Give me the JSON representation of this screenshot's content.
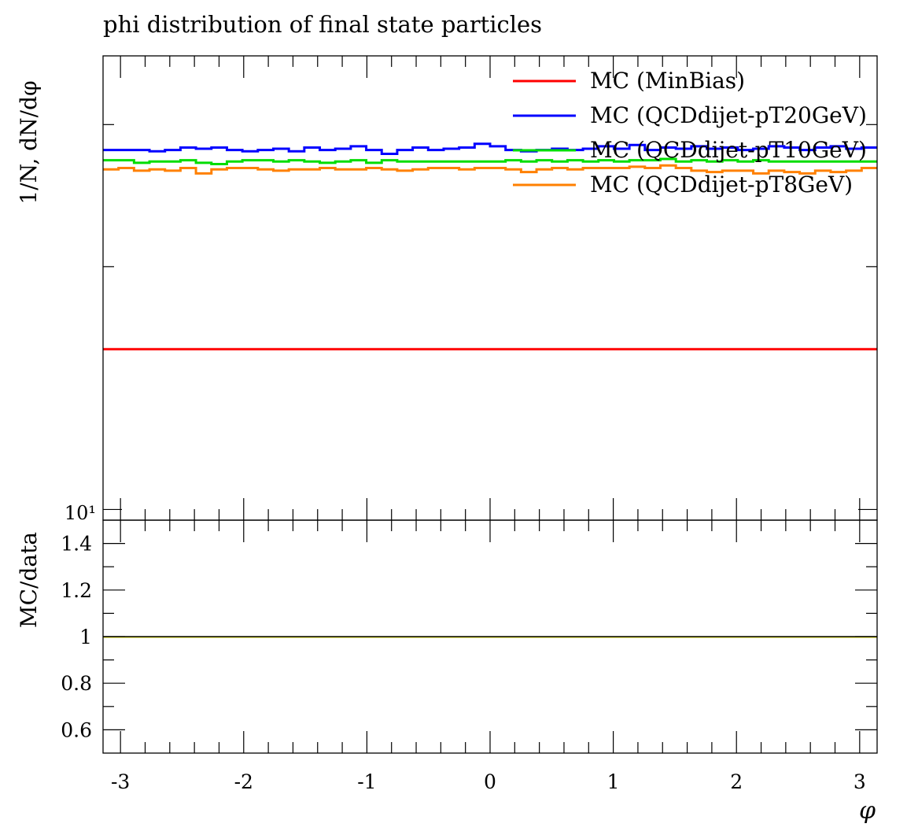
{
  "chart_data": {
    "type": "line",
    "title": "phi distribution of final state particles",
    "main": {
      "ylabel": "1/N, dN/dφ",
      "yscale": "log",
      "y_tick_label": "10¹",
      "ylim": [
        9.7,
        36.5
      ],
      "legend_position": "top-right",
      "bin_edges": [
        -3.1416,
        3.1416
      ],
      "n_bins": 50,
      "series": [
        {
          "name": "MC (MinBias)",
          "color": "#ff0000",
          "values": [
            15.8,
            15.8,
            15.8,
            15.8,
            15.8,
            15.8,
            15.8,
            15.8,
            15.8,
            15.8,
            15.8,
            15.8,
            15.8,
            15.8,
            15.8,
            15.8,
            15.8,
            15.8,
            15.8,
            15.8,
            15.8,
            15.8,
            15.8,
            15.8,
            15.8,
            15.8,
            15.8,
            15.8,
            15.8,
            15.8,
            15.8,
            15.8,
            15.8,
            15.8,
            15.8,
            15.8,
            15.8,
            15.8,
            15.8,
            15.8,
            15.8,
            15.8,
            15.8,
            15.8,
            15.8,
            15.8,
            15.8,
            15.8,
            15.8,
            15.8
          ]
        },
        {
          "name": "MC (QCDdijet-pT20GeV)",
          "color": "#0000ff",
          "values": [
            27.9,
            27.9,
            27.9,
            27.8,
            27.9,
            28.1,
            28.0,
            28.1,
            27.9,
            27.8,
            27.9,
            28.0,
            27.8,
            28.1,
            27.9,
            28.0,
            28.2,
            27.9,
            27.6,
            27.9,
            28.1,
            27.9,
            28.0,
            28.1,
            28.4,
            28.2,
            27.9,
            27.8,
            27.9,
            28.0,
            27.9,
            28.0,
            28.2,
            28.0,
            28.3,
            27.9,
            28.1,
            28.0,
            28.2,
            28.0,
            28.1,
            27.9,
            28.0,
            28.2,
            28.1,
            27.9,
            28.1,
            28.2,
            28.0,
            28.1
          ]
        },
        {
          "name": "MC (QCDdijet-pT10GeV)",
          "color": "#00dd00",
          "values": [
            27.1,
            27.1,
            26.9,
            27.0,
            27.0,
            27.1,
            26.9,
            26.8,
            27.0,
            27.1,
            27.1,
            27.0,
            27.1,
            27.0,
            26.9,
            27.0,
            27.1,
            26.9,
            27.1,
            27.0,
            27.0,
            27.0,
            27.0,
            27.0,
            27.0,
            27.0,
            27.1,
            27.0,
            27.1,
            27.0,
            27.1,
            27.0,
            27.1,
            27.0,
            27.1,
            27.1,
            27.2,
            27.0,
            27.1,
            27.0,
            27.1,
            27.0,
            27.1,
            27.0,
            27.0,
            27.0,
            27.0,
            27.0,
            27.0,
            27.0
          ]
        },
        {
          "name": "MC (QCDdijet-pT8GeV)",
          "color": "#ff8000",
          "values": [
            26.4,
            26.5,
            26.3,
            26.4,
            26.3,
            26.5,
            26.1,
            26.4,
            26.5,
            26.5,
            26.4,
            26.3,
            26.4,
            26.4,
            26.5,
            26.4,
            26.4,
            26.5,
            26.4,
            26.3,
            26.4,
            26.5,
            26.5,
            26.4,
            26.5,
            26.5,
            26.4,
            26.2,
            26.4,
            26.5,
            26.4,
            26.5,
            26.5,
            26.5,
            26.6,
            26.5,
            26.7,
            26.5,
            26.3,
            26.2,
            26.3,
            26.3,
            26.1,
            26.3,
            26.2,
            26.1,
            26.3,
            26.2,
            26.3,
            26.5
          ]
        }
      ]
    },
    "ratio": {
      "ylabel": "MC/data",
      "ylim": [
        0.5,
        1.5
      ],
      "ytick_labels": [
        {
          "value": 0.6,
          "label": "0.6"
        },
        {
          "value": 0.8,
          "label": "0.8"
        },
        {
          "value": 1.0,
          "label": "1"
        },
        {
          "value": 1.2,
          "label": "1.2"
        },
        {
          "value": 1.4,
          "label": "1.4"
        }
      ],
      "reference_line": 1.0,
      "reference_color": "#dddd00"
    },
    "x": {
      "xlabel": "φ",
      "xlim": [
        -3.1416,
        3.1416
      ],
      "tick_labels": [
        {
          "value": -3,
          "label": "-3"
        },
        {
          "value": -2,
          "label": "-2"
        },
        {
          "value": -1,
          "label": "-1"
        },
        {
          "value": 0,
          "label": "0"
        },
        {
          "value": 1,
          "label": "1"
        },
        {
          "value": 2,
          "label": "2"
        },
        {
          "value": 3,
          "label": "3"
        }
      ]
    }
  }
}
